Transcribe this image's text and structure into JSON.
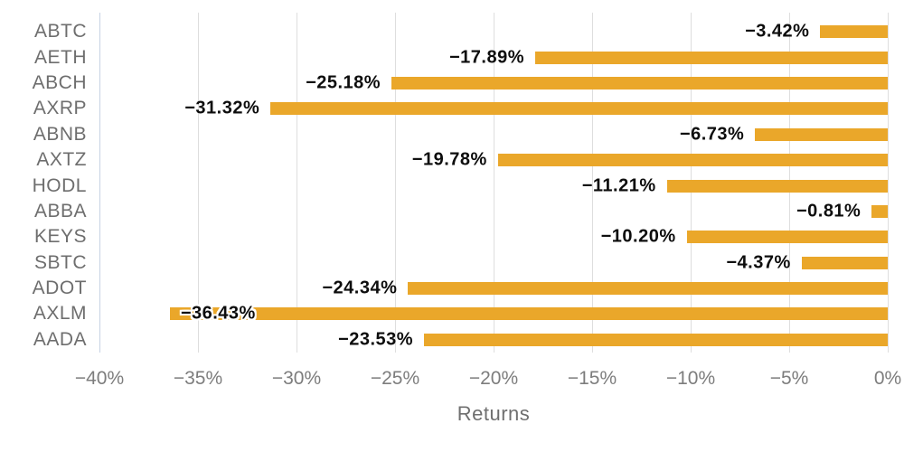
{
  "chart_data": {
    "type": "bar",
    "orientation": "horizontal",
    "title": "",
    "xlabel": "Returns",
    "ylabel": "",
    "categories": [
      "ABTC",
      "AETH",
      "ABCH",
      "AXRP",
      "ABNB",
      "AXTZ",
      "HODL",
      "ABBA",
      "KEYS",
      "SBTC",
      "ADOT",
      "AXLM",
      "AADA"
    ],
    "values": [
      -3.42,
      -17.89,
      -25.18,
      -31.32,
      -6.73,
      -19.78,
      -11.21,
      -0.81,
      -10.2,
      -4.37,
      -24.34,
      -36.43,
      -23.53
    ],
    "value_labels": [
      "−3.42%",
      "−17.89%",
      "−25.18%",
      "−31.32%",
      "−6.73%",
      "−19.78%",
      "−11.21%",
      "−0.81%",
      "−10.20%",
      "−4.37%",
      "−24.34%",
      "−36.43%",
      "−23.53%"
    ],
    "x_ticks": [
      "−40%",
      "−35%",
      "−30%",
      "−25%",
      "−20%",
      "−15%",
      "−10%",
      "−5%",
      "0%"
    ],
    "xlim": [
      -40,
      0
    ],
    "grid": true,
    "legend": false,
    "bar_color": "#EAA72A",
    "gridline_color": "#DEDEDE",
    "axis_edge_color": "#C7D2E4",
    "value_label_color": "#0D0D0D",
    "category_label_color": "#6E6E6E",
    "tick_label_color": "#7D7D7D",
    "axis_title_color": "#6F6F6F"
  }
}
